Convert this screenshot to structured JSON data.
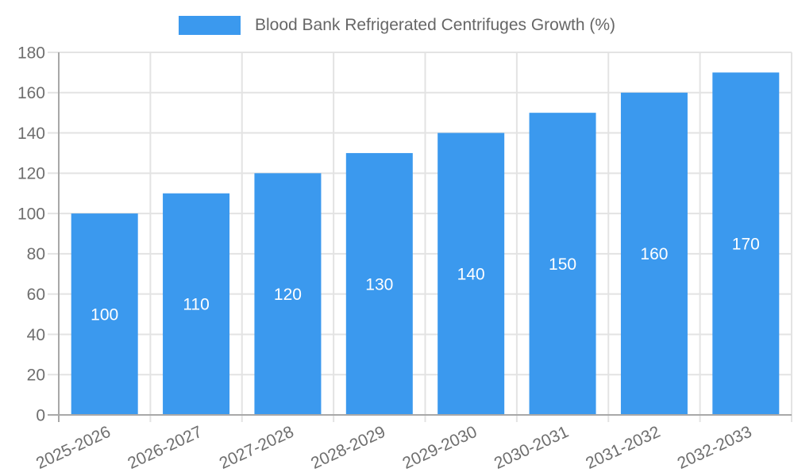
{
  "legend": {
    "label": "Blood Bank Refrigerated Centrifuges Growth (%)"
  },
  "chart_data": {
    "type": "bar",
    "title": "Blood Bank Refrigerated Centrifuges Growth (%)",
    "categories": [
      "2025-2026",
      "2026-2027",
      "2027-2028",
      "2028-2029",
      "2029-2030",
      "2030-2031",
      "2031-2032",
      "2032-2033"
    ],
    "values": [
      100,
      110,
      120,
      130,
      140,
      150,
      160,
      170
    ],
    "xlabel": "",
    "ylabel": "",
    "ylim": [
      0,
      180
    ],
    "ytick_step": 20,
    "ytick_labels": [
      "0",
      "20",
      "40",
      "60",
      "80",
      "100",
      "120",
      "140",
      "160",
      "180"
    ],
    "grid": true,
    "legend_position": "top",
    "colors": {
      "bar": "#3b99ee",
      "bar_value_label": "#ffffff",
      "axis_text": "#6e6e6e",
      "legend_text": "#666666",
      "grid_line": "#e3e3e3",
      "axis_line": "#a8a8a8"
    }
  }
}
